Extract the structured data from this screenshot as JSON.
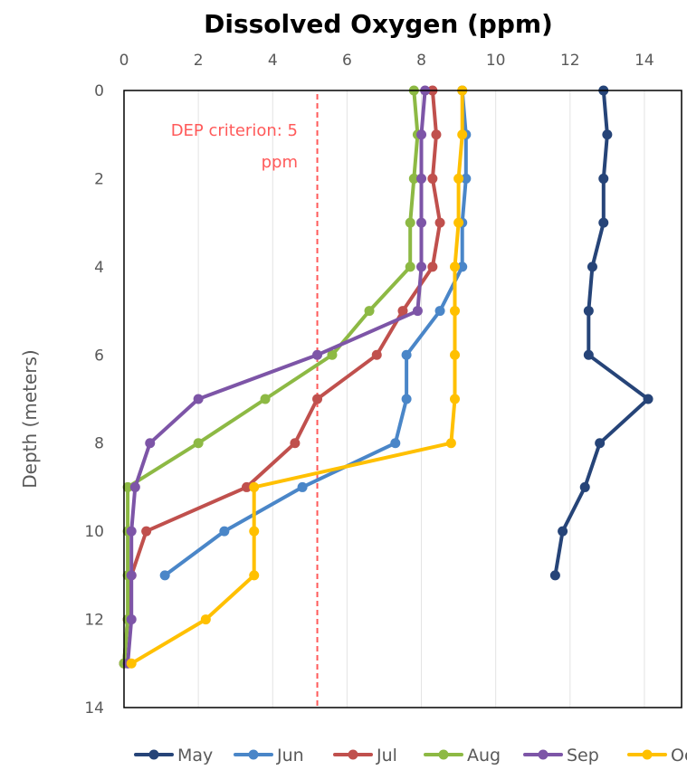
{
  "chart_data": {
    "type": "line",
    "title": "Dissolved Oxygen (ppm)",
    "xlabel": "",
    "ylabel": "Depth (meters)",
    "xlim": [
      0,
      15
    ],
    "ylim": [
      0,
      14
    ],
    "x_ticks": [
      0,
      2,
      4,
      6,
      8,
      10,
      12,
      14
    ],
    "y_ticks": [
      0,
      2,
      4,
      6,
      8,
      10,
      12,
      14
    ],
    "x_axis_position": "top",
    "y_axis_inverted": true,
    "grid": "vertical",
    "legend_position": "bottom",
    "annotation": {
      "lines": [
        "DEP criterion: 5",
        "ppm"
      ],
      "value": 5.2,
      "color": "#ff5a5a"
    },
    "series": [
      {
        "name": "May",
        "color": "#264478",
        "points": [
          [
            12.9,
            0
          ],
          [
            13.0,
            1
          ],
          [
            12.9,
            2
          ],
          [
            12.9,
            3
          ],
          [
            12.6,
            4
          ],
          [
            12.5,
            5
          ],
          [
            12.5,
            6
          ],
          [
            14.1,
            7
          ],
          [
            12.8,
            8
          ],
          [
            12.4,
            9
          ],
          [
            11.8,
            10
          ],
          [
            11.6,
            11
          ]
        ]
      },
      {
        "name": "Jun",
        "color": "#4a86c8",
        "points": [
          [
            9.1,
            0
          ],
          [
            9.2,
            1
          ],
          [
            9.2,
            2
          ],
          [
            9.1,
            3
          ],
          [
            9.1,
            4
          ],
          [
            8.5,
            5
          ],
          [
            7.6,
            6
          ],
          [
            7.6,
            7
          ],
          [
            7.3,
            8
          ],
          [
            4.8,
            9
          ],
          [
            2.7,
            10
          ],
          [
            1.1,
            11
          ]
        ]
      },
      {
        "name": "Jul",
        "color": "#c0504d",
        "points": [
          [
            8.3,
            0
          ],
          [
            8.4,
            1
          ],
          [
            8.3,
            2
          ],
          [
            8.5,
            3
          ],
          [
            8.3,
            4
          ],
          [
            7.5,
            5
          ],
          [
            6.8,
            6
          ],
          [
            5.2,
            7
          ],
          [
            4.6,
            8
          ],
          [
            3.3,
            9
          ],
          [
            0.6,
            10
          ],
          [
            0.2,
            11
          ],
          [
            0.1,
            12
          ],
          [
            0.0,
            13
          ]
        ]
      },
      {
        "name": "Aug",
        "color": "#8db944",
        "points": [
          [
            7.8,
            0
          ],
          [
            7.9,
            1
          ],
          [
            7.8,
            2
          ],
          [
            7.7,
            3
          ],
          [
            7.7,
            4
          ],
          [
            6.6,
            5
          ],
          [
            5.6,
            6
          ],
          [
            3.8,
            7
          ],
          [
            2.0,
            8
          ],
          [
            0.1,
            9
          ],
          [
            0.1,
            10
          ],
          [
            0.1,
            11
          ],
          [
            0.1,
            12
          ],
          [
            0.0,
            13
          ]
        ]
      },
      {
        "name": "Sep",
        "color": "#7d55a7",
        "points": [
          [
            8.1,
            0
          ],
          [
            8.0,
            1
          ],
          [
            8.0,
            2
          ],
          [
            8.0,
            3
          ],
          [
            8.0,
            4
          ],
          [
            7.9,
            5
          ],
          [
            5.2,
            6
          ],
          [
            2.0,
            7
          ],
          [
            0.7,
            8
          ],
          [
            0.3,
            9
          ],
          [
            0.2,
            10
          ],
          [
            0.2,
            11
          ],
          [
            0.2,
            12
          ],
          [
            0.1,
            13
          ]
        ]
      },
      {
        "name": "Oct",
        "color": "#ffc000",
        "points": [
          [
            9.1,
            0
          ],
          [
            9.1,
            1
          ],
          [
            9.0,
            2
          ],
          [
            9.0,
            3
          ],
          [
            8.9,
            4
          ],
          [
            8.9,
            5
          ],
          [
            8.9,
            6
          ],
          [
            8.9,
            7
          ],
          [
            8.8,
            8
          ],
          [
            3.5,
            9
          ],
          [
            3.5,
            10
          ],
          [
            3.5,
            11
          ],
          [
            2.2,
            12
          ],
          [
            0.2,
            13
          ]
        ]
      }
    ]
  }
}
